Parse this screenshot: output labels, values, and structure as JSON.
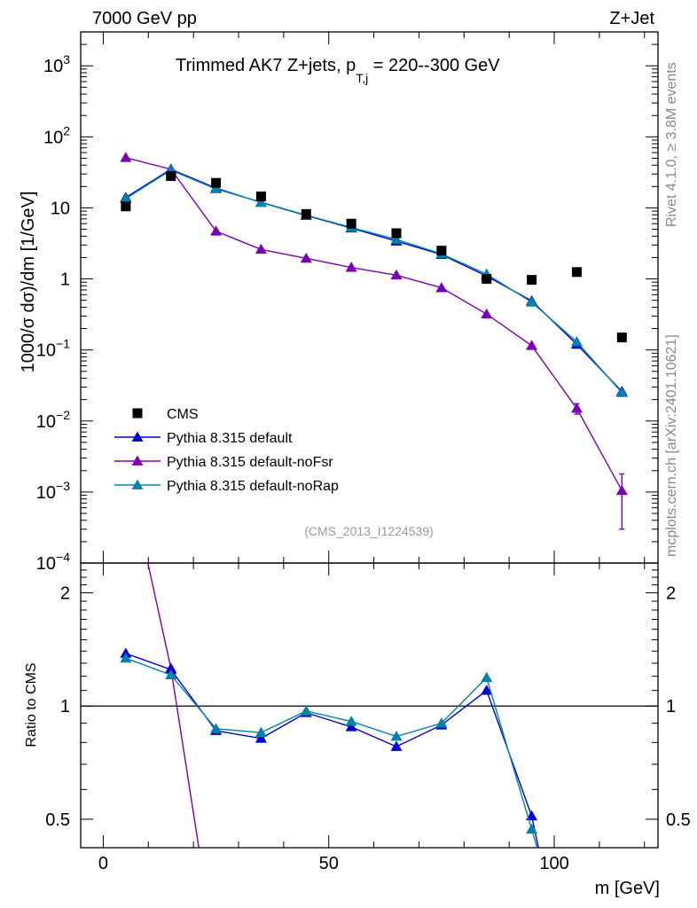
{
  "header": {
    "left": "7000 GeV pp",
    "right": "Z+Jet"
  },
  "side": {
    "rivet": "Rivet 4.1.0, ≥ 3.8M events",
    "mcplots": "mcplots.cern.ch [arXiv:2401.10621]"
  },
  "main_title": {
    "prefix": "Trimmed AK7 Z+jets, p",
    "subscript": "T,j",
    "suffix": " = 220--300 GeV"
  },
  "analysis_id": "(CMS_2013_I1224539)",
  "y_label_top": "1000/σ  dσ)/dm [1/GeV]",
  "y_label_ratio": "Ratio to CMS",
  "x_label": "m [GeV]",
  "colors": {
    "cms": "#000000",
    "default": "#0000cc",
    "noFsr": "#7a00b4",
    "noRap": "#0083a8",
    "ratio_ref": "#000000",
    "side_text": "#888888",
    "analysis_text": "#999999"
  },
  "chart_data": [
    {
      "type": "scatter",
      "panel": "main",
      "title": "Trimmed AK7 Z+jets, p_T,j = 220--300 GeV",
      "xlabel": "m [GeV]",
      "ylabel": "1000/σ  dσ)/dm [1/GeV]",
      "xlim": [
        -5,
        123
      ],
      "ylim": [
        0.0001,
        3000
      ],
      "yscale": "log",
      "x_ticks": [
        0,
        50,
        100
      ],
      "y_ticks": [
        {
          "value": 0.0001,
          "base": "10",
          "exp": "−4"
        },
        {
          "value": 0.001,
          "base": "10",
          "exp": "−3"
        },
        {
          "value": 0.01,
          "base": "10",
          "exp": "−2"
        },
        {
          "value": 0.1,
          "base": "10",
          "exp": "−1"
        },
        {
          "value": 1,
          "base": "1",
          "exp": ""
        },
        {
          "value": 10,
          "base": "10",
          "exp": ""
        },
        {
          "value": 100,
          "base": "10",
          "exp": "2"
        },
        {
          "value": 1000,
          "base": "10",
          "exp": "3"
        }
      ],
      "legend_position": "bottom-left",
      "series": [
        {
          "name": "CMS",
          "color_key": "cms",
          "marker": "square",
          "line": false,
          "x": [
            5,
            15,
            25,
            35,
            45,
            55,
            65,
            75,
            85,
            95,
            105,
            115
          ],
          "y": [
            10.5,
            28,
            22.5,
            14.5,
            8.2,
            6.0,
            4.4,
            2.5,
            1.0,
            0.97,
            1.25,
            0.15
          ]
        },
        {
          "name": "Pythia 8.315 default",
          "color_key": "default",
          "marker": "triangle",
          "line": true,
          "x": [
            5,
            15,
            25,
            35,
            45,
            55,
            65,
            75,
            85,
            95,
            105,
            115
          ],
          "y": [
            14,
            35,
            19,
            11.9,
            7.8,
            5.2,
            3.4,
            2.2,
            1.1,
            0.49,
            0.12,
            0.026
          ]
        },
        {
          "name": "Pythia 8.315 default-noFsr",
          "color_key": "noFsr",
          "marker": "triangle",
          "line": true,
          "x": [
            5,
            15,
            25,
            35,
            45,
            55,
            65,
            75,
            85,
            95,
            105,
            115
          ],
          "y": [
            51,
            35,
            4.7,
            2.6,
            1.95,
            1.45,
            1.13,
            0.75,
            0.32,
            0.115,
            0.015,
            0.00105
          ],
          "y_err": [
            0,
            0,
            0,
            0,
            0,
            0,
            0,
            0,
            0,
            0,
            0.0025,
            0.00075
          ]
        },
        {
          "name": "Pythia 8.315 default-noRap",
          "color_key": "noRap",
          "marker": "triangle",
          "line": true,
          "x": [
            5,
            15,
            25,
            35,
            45,
            55,
            65,
            75,
            85,
            95,
            105,
            115
          ],
          "y": [
            13.5,
            34,
            18.5,
            12.0,
            7.9,
            5.3,
            3.6,
            2.25,
            1.17,
            0.47,
            0.13,
            0.025
          ]
        }
      ]
    },
    {
      "type": "line",
      "panel": "ratio",
      "ylabel": "Ratio to CMS",
      "xlim": [
        -5,
        123
      ],
      "ylim": [
        0.42,
        2.4
      ],
      "yscale": "log",
      "y_ticks": [
        {
          "value": 0.5,
          "label": "0.5"
        },
        {
          "value": 1,
          "label": "1"
        },
        {
          "value": 2,
          "label": "2"
        }
      ],
      "reference_line": 1,
      "series": [
        {
          "name": "Pythia 8.315 default",
          "color_key": "default",
          "x": [
            5,
            15,
            25,
            35,
            45,
            55,
            65,
            75,
            85,
            95,
            96.5
          ],
          "y": [
            1.38,
            1.25,
            0.86,
            0.82,
            0.96,
            0.88,
            0.78,
            0.89,
            1.1,
            0.51,
            0.42
          ],
          "markers": [
            true,
            true,
            true,
            true,
            true,
            true,
            true,
            true,
            true,
            true,
            false
          ]
        },
        {
          "name": "Pythia 8.315 default-noFsr",
          "color_key": "noFsr",
          "x": [
            9.9,
            15,
            21.2
          ],
          "y": [
            2.4,
            1.26,
            0.42
          ],
          "markers": [
            false,
            true,
            false
          ]
        },
        {
          "name": "Pythia 8.315 default-noRap",
          "color_key": "noRap",
          "x": [
            5,
            15,
            25,
            35,
            45,
            55,
            65,
            75,
            85,
            95,
            96.2
          ],
          "y": [
            1.34,
            1.21,
            0.87,
            0.85,
            0.97,
            0.91,
            0.83,
            0.9,
            1.19,
            0.47,
            0.42
          ],
          "markers": [
            true,
            true,
            true,
            true,
            true,
            true,
            true,
            true,
            true,
            true,
            false
          ]
        }
      ]
    }
  ]
}
